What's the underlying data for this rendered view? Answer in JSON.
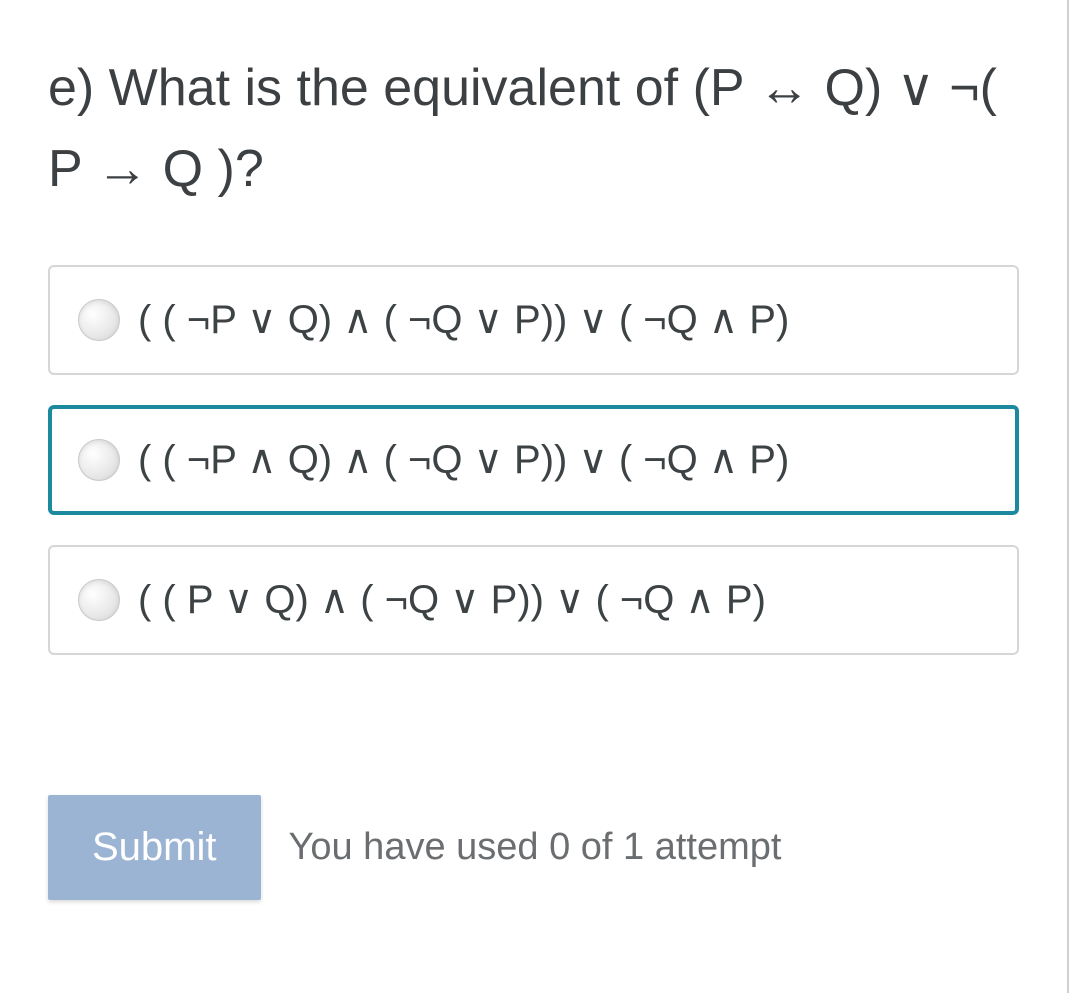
{
  "question": {
    "prefix": "e) What is the equivalent of (P  ↔ Q) ∨ ¬( P  → Q )?"
  },
  "options": [
    {
      "label": "( ( ¬P ∨ Q) ∧ ( ¬Q ∨ P)) ∨ ( ¬Q ∧ P)",
      "selected": false
    },
    {
      "label": "( ( ¬P ∧ Q) ∧ ( ¬Q ∨ P)) ∨ ( ¬Q ∧ P)",
      "selected": true
    },
    {
      "label": "( ( P ∨ Q) ∧ ( ¬Q ∨ P)) ∨ ( ¬Q ∧ P)",
      "selected": false
    }
  ],
  "footer": {
    "submit_label": "Submit",
    "attempts_text": "You have used 0 of 1 attempt"
  },
  "colors": {
    "text_primary": "#3d4043",
    "text_secondary": "#6b6e70",
    "border_default": "#d4d6d8",
    "border_selected": "#1b8a9e",
    "submit_bg": "#9bb4d4",
    "submit_text": "#ffffff",
    "background": "#ffffff"
  },
  "typography": {
    "question_fontsize": 52,
    "option_fontsize": 40,
    "button_fontsize": 40,
    "attempts_fontsize": 38
  }
}
